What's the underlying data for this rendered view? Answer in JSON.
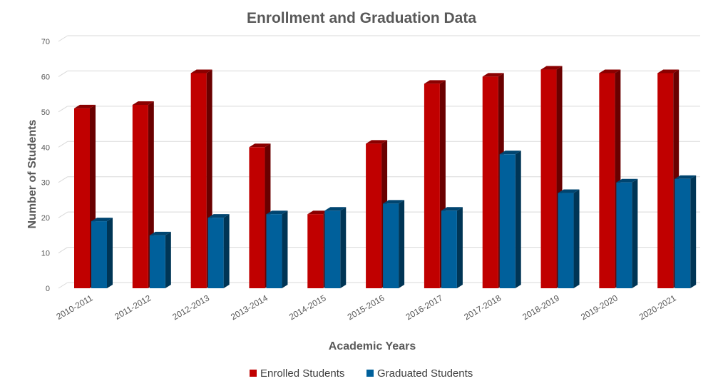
{
  "chart_data": {
    "type": "bar",
    "title": "Enrollment and Graduation Data",
    "xlabel": "Academic Years",
    "ylabel": "Number of Students",
    "ylim": [
      0,
      70
    ],
    "yticks": [
      0,
      10,
      20,
      30,
      40,
      50,
      60,
      70
    ],
    "grid": true,
    "legend_position": "bottom",
    "style_3d": true,
    "categories": [
      "2010-2011",
      "2011-2012",
      "2012-2013",
      "2013-2014",
      "2014-2015",
      "2015-2016",
      "2016-2017",
      "2017-2018",
      "2018-2019",
      "2019-2020",
      "2020-2021"
    ],
    "series": [
      {
        "name": "Enrolled Students",
        "color": "#c00000",
        "values": [
          51,
          52,
          61,
          40,
          21,
          41,
          58,
          60,
          62,
          61,
          61
        ]
      },
      {
        "name": "Graduated Students",
        "color": "#00609b",
        "values": [
          19,
          15,
          20,
          21,
          22,
          24,
          22,
          38,
          27,
          30,
          31
        ]
      }
    ]
  }
}
